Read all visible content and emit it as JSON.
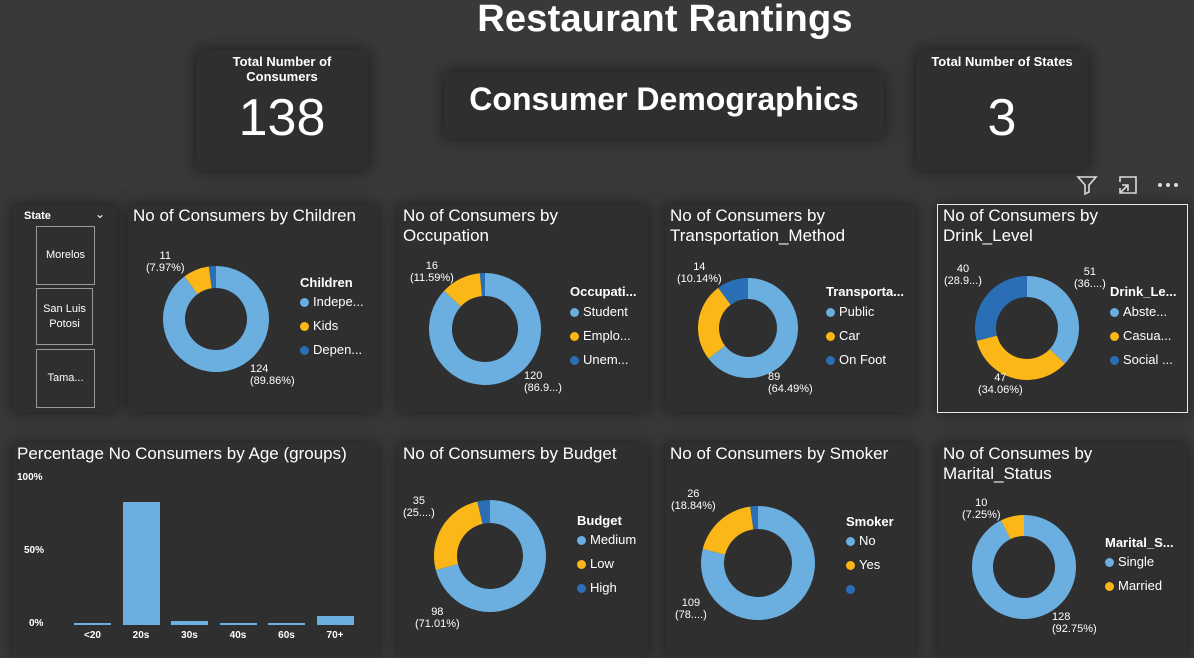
{
  "title": "Restaurant Rantings",
  "kpis": {
    "consumers": {
      "label": "Total Number of Consumers",
      "value": "138"
    },
    "states": {
      "label": "Total Number of States",
      "value": "3"
    }
  },
  "banner": "Consumer Demographics",
  "toolbar": {
    "filter_icon": "filter-icon",
    "focus_icon": "focus-mode-icon",
    "more_icon": "more-options-icon"
  },
  "slicer": {
    "label": "State",
    "items": [
      "Morelos",
      "San Luis Potosi",
      "Tama..."
    ]
  },
  "colors": {
    "blue": "#6aafe0",
    "orange": "#fbb617",
    "darkblue": "#2a6fb5",
    "tile": "#2f2f2f",
    "bg": "#3a3938"
  },
  "donuts": {
    "children": {
      "title": "No of Consumers by Children",
      "legend_title": "Children",
      "legend": [
        "Indepe...",
        "Kids",
        "Depen..."
      ],
      "labels": {
        "a_val": "124",
        "a_pct": "(89.86%)",
        "b_val": "11",
        "b_pct": "(7.97%)"
      }
    },
    "occupation": {
      "title": "No of Consumers by Occupation",
      "legend_title": "Occupati...",
      "legend": [
        "Student",
        "Emplo...",
        "Unem..."
      ],
      "labels": {
        "a_val": "120",
        "a_pct": "(86.9...)",
        "b_val": "16",
        "b_pct": "(11.59%)"
      }
    },
    "transport": {
      "title": "No of Consumers by Transportation_Method",
      "legend_title": "Transporta...",
      "legend": [
        "Public",
        "Car",
        "On Foot"
      ],
      "labels": {
        "a_val": "89",
        "a_pct": "(64.49%)",
        "b_val": "14",
        "b_pct": "(10.14%)"
      }
    },
    "drink": {
      "title": "No of Consumers by Drink_Level",
      "legend_title": "Drink_Le...",
      "legend": [
        "Abste...",
        "Casua...",
        "Social ..."
      ],
      "labels": {
        "a_val": "51",
        "a_pct": "(36....)",
        "b_val": "47",
        "b_pct": "(34.06%)",
        "c_val": "40",
        "c_pct": "(28.9...)"
      }
    },
    "budget": {
      "title": "No of Consumers by Budget",
      "legend_title": "Budget",
      "legend": [
        "Medium",
        "Low",
        "High"
      ],
      "labels": {
        "a_val": "98",
        "a_pct": "(71.01%)",
        "b_val": "35",
        "b_pct": "(25....)"
      }
    },
    "smoker": {
      "title": "No of Consumers by Smoker",
      "legend_title": "Smoker",
      "legend": [
        "No",
        "Yes",
        ""
      ],
      "labels": {
        "a_val": "109",
        "a_pct": "(78....)",
        "b_val": "26",
        "b_pct": "(18.84%)"
      }
    },
    "marital": {
      "title": "No of Consumes by Marital_Status",
      "legend_title": "Marital_S...",
      "legend": [
        "Single",
        "Married"
      ],
      "labels": {
        "a_val": "128",
        "a_pct": "(92.75%)",
        "b_val": "10",
        "b_pct": "(7.25%)"
      }
    }
  },
  "chart_data": [
    {
      "type": "pie",
      "title": "No of Consumers by Children",
      "legend_title": "Children",
      "categories": [
        "Indepe...",
        "Kids",
        "Depen..."
      ],
      "values": [
        124,
        11,
        3
      ],
      "percents": [
        89.86,
        7.97,
        2.17
      ],
      "colors": [
        "#6aafe0",
        "#fbb617",
        "#2a6fb5"
      ]
    },
    {
      "type": "pie",
      "title": "No of Consumers by Occupation",
      "legend_title": "Occupati...",
      "categories": [
        "Student",
        "Emplo...",
        "Unem..."
      ],
      "values": [
        120,
        16,
        2
      ],
      "percents": [
        86.96,
        11.59,
        1.45
      ],
      "colors": [
        "#6aafe0",
        "#fbb617",
        "#2a6fb5"
      ]
    },
    {
      "type": "pie",
      "title": "No of Consumers by Transportation_Method",
      "legend_title": "Transporta...",
      "categories": [
        "Public",
        "Car",
        "On Foot"
      ],
      "values": [
        89,
        35,
        14
      ],
      "percents": [
        64.49,
        25.36,
        10.14
      ],
      "colors": [
        "#6aafe0",
        "#fbb617",
        "#2a6fb5"
      ]
    },
    {
      "type": "pie",
      "title": "No of Consumers by Drink_Level",
      "legend_title": "Drink_Le...",
      "categories": [
        "Abste...",
        "Casua...",
        "Social ..."
      ],
      "values": [
        51,
        47,
        40
      ],
      "percents": [
        36.96,
        34.06,
        28.99
      ],
      "colors": [
        "#6aafe0",
        "#fbb617",
        "#2a6fb5"
      ]
    },
    {
      "type": "bar",
      "title": "Percentage No Consumers by Age (groups)",
      "categories": [
        "<20",
        "20s",
        "30s",
        "40s",
        "60s",
        "70+"
      ],
      "values": [
        1.5,
        84,
        3,
        1.5,
        1.5,
        6
      ],
      "yticks": [
        "0%",
        "50%",
        "100%"
      ],
      "ylim": [
        0,
        100
      ]
    },
    {
      "type": "pie",
      "title": "No of Consumers by Budget",
      "legend_title": "Budget",
      "categories": [
        "Medium",
        "Low",
        "High"
      ],
      "values": [
        98,
        35,
        5
      ],
      "percents": [
        71.01,
        25.36,
        3.62
      ],
      "colors": [
        "#6aafe0",
        "#fbb617",
        "#2a6fb5"
      ]
    },
    {
      "type": "pie",
      "title": "No of Consumers by Smoker",
      "legend_title": "Smoker",
      "categories": [
        "No",
        "Yes",
        ""
      ],
      "values": [
        109,
        26,
        3
      ],
      "percents": [
        78.99,
        18.84,
        2.17
      ],
      "colors": [
        "#6aafe0",
        "#fbb617",
        "#2a6fb5"
      ]
    },
    {
      "type": "pie",
      "title": "No of Consumes by Marital_Status",
      "legend_title": "Marital_S...",
      "categories": [
        "Single",
        "Married"
      ],
      "values": [
        128,
        10
      ],
      "percents": [
        92.75,
        7.25
      ],
      "colors": [
        "#6aafe0",
        "#fbb617"
      ]
    }
  ]
}
